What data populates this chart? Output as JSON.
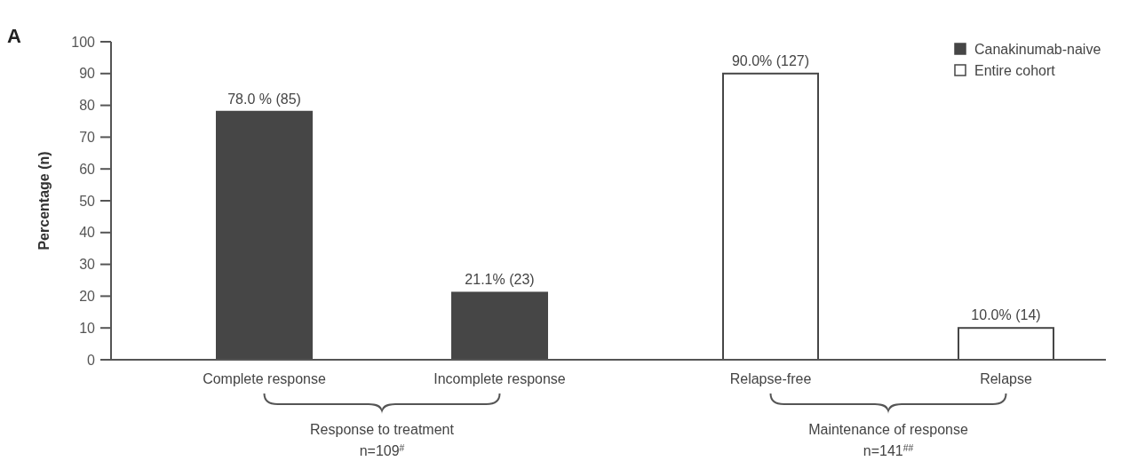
{
  "chart_data": {
    "type": "bar",
    "ylabel": "Percentage (n)",
    "categories": [
      "Complete response",
      "Incomplete response",
      "Relapse-free",
      "Relapse"
    ],
    "series": [
      {
        "name": "Canakinumab-naive",
        "color": "#464646",
        "values": [
          78.0,
          21.1,
          null,
          null
        ],
        "value_labels": [
          "78.0 % (85)",
          "21.1% (23)",
          null,
          null
        ]
      },
      {
        "name": "Entire cohort",
        "color": "#ffffff",
        "values": [
          null,
          null,
          90.0,
          10.0
        ],
        "value_labels": [
          null,
          null,
          "90.0% (127)",
          "10.0% (14)"
        ]
      }
    ],
    "ylim": [
      0,
      100
    ],
    "yticks": [
      0,
      10,
      20,
      30,
      40,
      50,
      60,
      70,
      80,
      90,
      100
    ],
    "legend": "top right",
    "grid": false,
    "annotations": [
      "A",
      "Response to treatment",
      "n=109$^{#}$",
      "Maintenance of response",
      "n=141$^{##}$"
    ]
  }
}
